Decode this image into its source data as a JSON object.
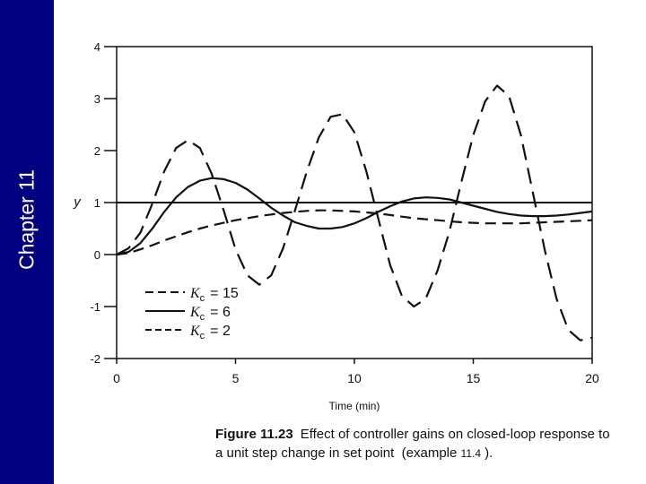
{
  "sidebar": {
    "chapter_label": "Chapter 11",
    "color": "#000080"
  },
  "caption": {
    "label": "Figure 11.23",
    "line1": "Effect of controller gains on closed-loop response to",
    "line2_prefix": "a unit step change in set point",
    "example_open": "(example",
    "example_num": "11.4",
    "example_close": ")."
  },
  "chart_data": {
    "type": "line",
    "title": "",
    "xlabel": "Time (min)",
    "ylabel": "y",
    "xlim": [
      0,
      20
    ],
    "ylim": [
      -2,
      4
    ],
    "xticks": [
      0,
      5,
      10,
      15,
      20
    ],
    "yticks": [
      -2,
      -1,
      0,
      1,
      2,
      3,
      4
    ],
    "xtick_labels": [
      "0",
      "5",
      "10",
      "15",
      "20"
    ],
    "ytick_labels": [
      "-2",
      "-1",
      "0",
      "1",
      "2",
      "3",
      "4"
    ],
    "setpoint": {
      "y": 1
    },
    "legend_position": "bottom-left",
    "series": [
      {
        "name": "Kc = 15",
        "gain_symbol": "K",
        "gain_sub": "c",
        "gain_value": "= 15",
        "style": "long-dash",
        "x": [
          0,
          0.5,
          1,
          1.5,
          2,
          2.5,
          3,
          3.5,
          4,
          4.5,
          5,
          5.5,
          6,
          6.5,
          7,
          7.5,
          8,
          8.5,
          9,
          9.5,
          10,
          10.5,
          11,
          11.5,
          12,
          12.5,
          13,
          13.5,
          14,
          14.5,
          15,
          15.5,
          16,
          16.5,
          17,
          17.5,
          18,
          18.5,
          19,
          19.5,
          20
        ],
        "y": [
          0,
          0.12,
          0.42,
          0.98,
          1.6,
          2.05,
          2.2,
          2.05,
          1.55,
          0.85,
          0.1,
          -0.4,
          -0.58,
          -0.4,
          0.12,
          0.85,
          1.6,
          2.25,
          2.65,
          2.7,
          2.35,
          1.6,
          0.7,
          -0.2,
          -0.8,
          -1.0,
          -0.85,
          -0.3,
          0.45,
          1.4,
          2.3,
          2.95,
          3.25,
          3.05,
          2.3,
          1.2,
          0.1,
          -0.85,
          -1.45,
          -1.65,
          -1.6
        ]
      },
      {
        "name": "Kc = 6",
        "gain_symbol": "K",
        "gain_sub": "c",
        "gain_value": "= 6",
        "style": "solid",
        "x": [
          0,
          0.5,
          1,
          1.5,
          2,
          2.5,
          3,
          3.5,
          4,
          4.5,
          5,
          5.5,
          6,
          6.5,
          7,
          7.5,
          8,
          8.5,
          9,
          9.5,
          10,
          10.5,
          11,
          11.5,
          12,
          12.5,
          13,
          13.5,
          14,
          14.5,
          15,
          15.5,
          16,
          16.5,
          17,
          17.5,
          18,
          18.5,
          19,
          19.5,
          20
        ],
        "y": [
          0,
          0.05,
          0.22,
          0.5,
          0.82,
          1.1,
          1.3,
          1.42,
          1.47,
          1.45,
          1.38,
          1.25,
          1.08,
          0.9,
          0.75,
          0.62,
          0.55,
          0.5,
          0.5,
          0.53,
          0.6,
          0.7,
          0.82,
          0.93,
          1.02,
          1.08,
          1.1,
          1.09,
          1.06,
          1.0,
          0.94,
          0.88,
          0.82,
          0.78,
          0.75,
          0.74,
          0.74,
          0.75,
          0.77,
          0.8,
          0.83
        ]
      },
      {
        "name": "Kc = 2",
        "gain_symbol": "K",
        "gain_sub": "c",
        "gain_value": "= 2",
        "style": "short-dash",
        "x": [
          0,
          0.5,
          1,
          1.5,
          2,
          2.5,
          3,
          3.5,
          4,
          4.5,
          5,
          5.5,
          6,
          6.5,
          7,
          7.5,
          8,
          8.5,
          9,
          9.5,
          10,
          10.5,
          11,
          11.5,
          12,
          12.5,
          13,
          13.5,
          14,
          14.5,
          15,
          15.5,
          16,
          16.5,
          17,
          17.5,
          18,
          18.5,
          19,
          19.5,
          20
        ],
        "y": [
          0,
          0.03,
          0.1,
          0.18,
          0.27,
          0.35,
          0.43,
          0.5,
          0.56,
          0.61,
          0.66,
          0.7,
          0.74,
          0.77,
          0.8,
          0.82,
          0.84,
          0.85,
          0.85,
          0.84,
          0.83,
          0.81,
          0.79,
          0.76,
          0.73,
          0.7,
          0.68,
          0.66,
          0.64,
          0.62,
          0.61,
          0.6,
          0.6,
          0.6,
          0.6,
          0.61,
          0.62,
          0.63,
          0.64,
          0.65,
          0.66
        ]
      }
    ]
  }
}
